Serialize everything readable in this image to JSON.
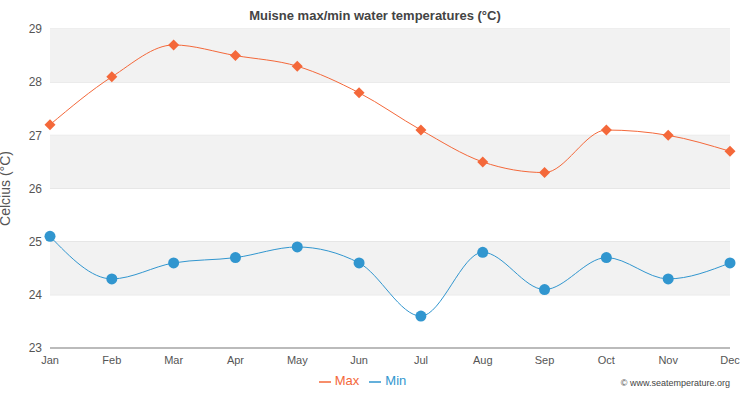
{
  "chart_data": {
    "type": "line",
    "title": "Muisne max/min water temperatures (°C)",
    "y_label": "Celcius (°C)",
    "annotations": [
      "© www.seatemperature.org"
    ],
    "categories": [
      "Jan",
      "Feb",
      "Mar",
      "Apr",
      "May",
      "Jun",
      "Jul",
      "Aug",
      "Sep",
      "Oct",
      "Nov",
      "Dec"
    ],
    "series": [
      {
        "name": "Max",
        "color": "#f4683a",
        "marker": "diamond",
        "values": [
          27.2,
          28.1,
          28.7,
          28.5,
          28.3,
          27.8,
          27.1,
          26.5,
          26.3,
          27.1,
          27.0,
          26.7
        ]
      },
      {
        "name": "Min",
        "color": "#3196cf",
        "marker": "circle",
        "values": [
          25.1,
          24.3,
          24.6,
          24.7,
          24.9,
          24.6,
          23.6,
          24.8,
          24.1,
          24.7,
          24.3,
          24.6
        ]
      }
    ],
    "ylim": [
      23,
      29
    ],
    "yticks": [
      23,
      24,
      25,
      26,
      27,
      28,
      29
    ],
    "grid": true,
    "legend": "bottom"
  }
}
